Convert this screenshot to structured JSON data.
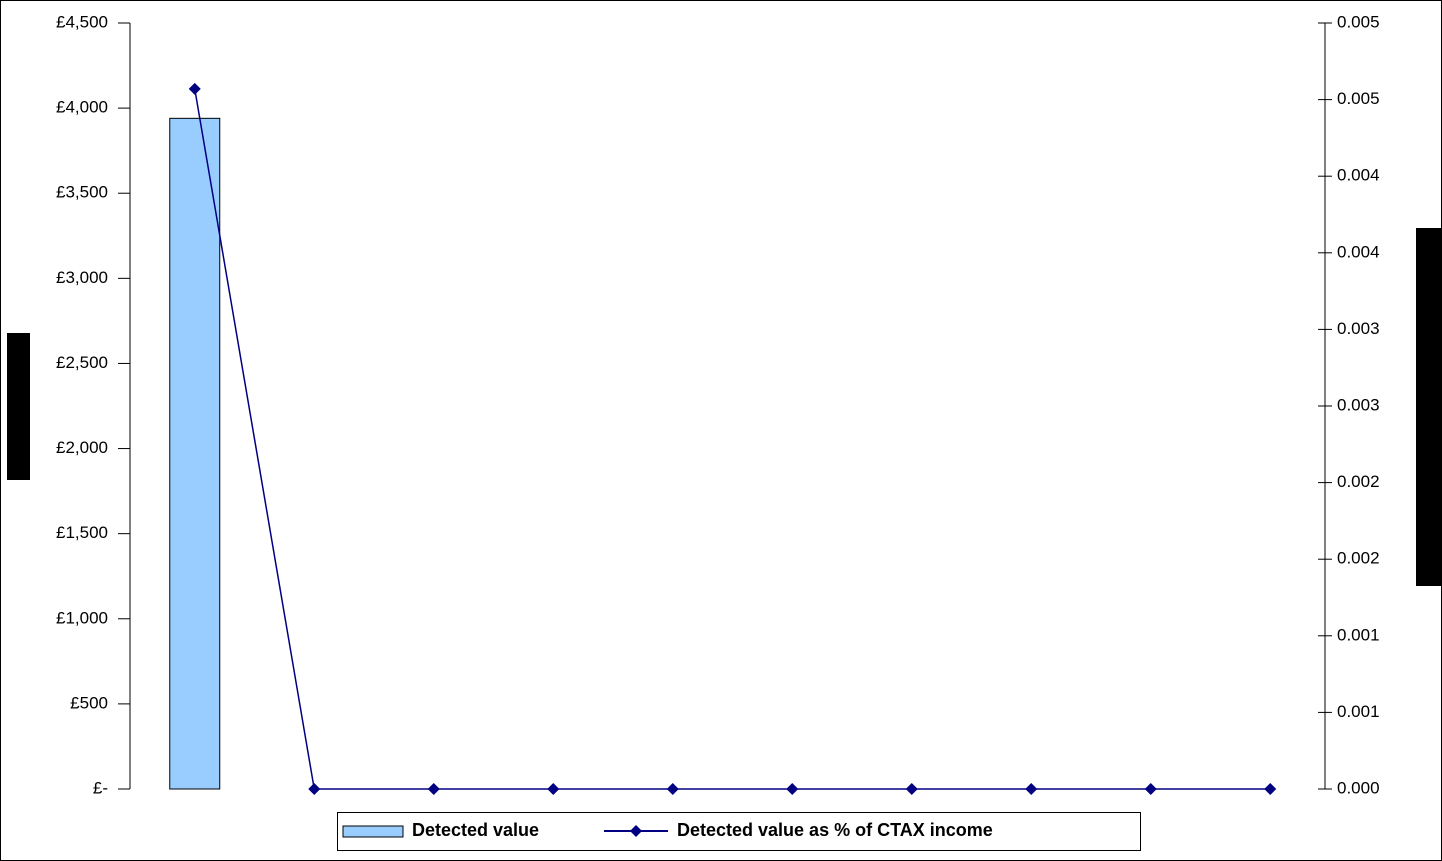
{
  "chart_data": {
    "type": "bar-line",
    "categories": [
      null,
      null,
      null,
      null,
      null,
      null,
      null,
      null,
      null,
      null
    ],
    "series": [
      {
        "name": "Detected value",
        "type": "bar",
        "color": "#99ccff",
        "axis": "y",
        "values": [
          3940,
          0,
          0,
          0,
          0,
          0,
          0,
          0,
          0,
          0
        ]
      },
      {
        "name": "Detected value as % of CTAX income",
        "type": "line",
        "color": "#000080",
        "axis": "y2",
        "values": [
          0.00457,
          0,
          0,
          0,
          0,
          0,
          0,
          0,
          0,
          0
        ]
      }
    ],
    "ylim": [
      0,
      4500
    ],
    "yticks": [
      {
        "value": 0,
        "label": "£-"
      },
      {
        "value": 500,
        "label": "£500"
      },
      {
        "value": 1000,
        "label": "£1,000"
      },
      {
        "value": 1500,
        "label": "£1,500"
      },
      {
        "value": 2000,
        "label": "£2,000"
      },
      {
        "value": 2500,
        "label": "£2,500"
      },
      {
        "value": 3000,
        "label": "£3,000"
      },
      {
        "value": 3500,
        "label": "£3,500"
      },
      {
        "value": 4000,
        "label": "£4,000"
      },
      {
        "value": 4500,
        "label": "£4,500"
      }
    ],
    "y2lim": [
      0,
      0.005
    ],
    "y2ticks": [
      {
        "value": 0,
        "label": "0.000"
      },
      {
        "value": 0.0005,
        "label": "0.001"
      },
      {
        "value": 0.001,
        "label": "0.001"
      },
      {
        "value": 0.0015,
        "label": "0.002"
      },
      {
        "value": 0.002,
        "label": "0.002"
      },
      {
        "value": 0.0025,
        "label": "0.003"
      },
      {
        "value": 0.003,
        "label": "0.003"
      },
      {
        "value": 0.0035,
        "label": "0.004"
      },
      {
        "value": 0.004,
        "label": "0.004"
      },
      {
        "value": 0.0045,
        "label": "0.005"
      },
      {
        "value": 0.005,
        "label": "0.005"
      }
    ],
    "grid": false,
    "legend": "bottom"
  }
}
